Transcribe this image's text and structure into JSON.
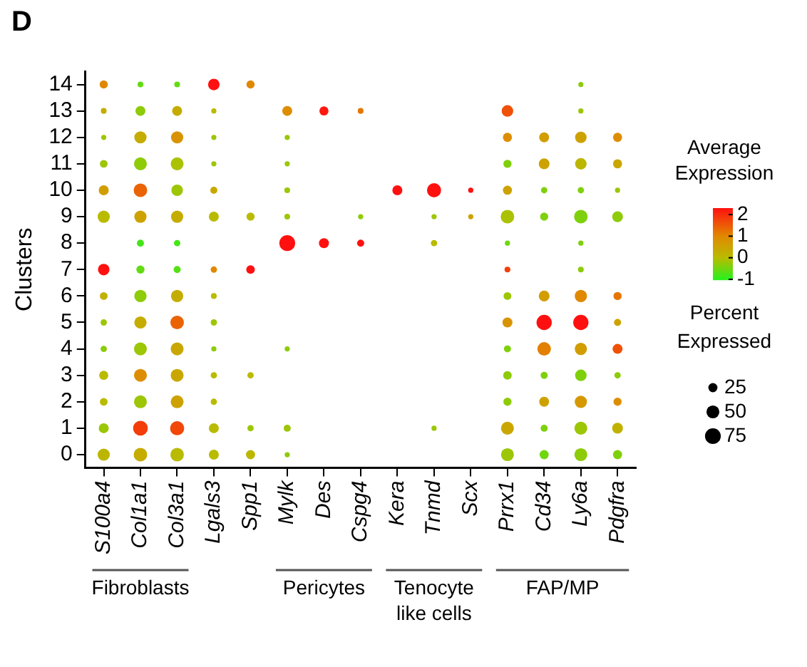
{
  "chart_data": {
    "type": "bubble",
    "title": "D",
    "ylabel": "Clusters",
    "categories": [
      "S100a4",
      "Col1a1",
      "Col3a1",
      "Lgals3",
      "Spp1",
      "Mylk",
      "Des",
      "Cspg4",
      "Kera",
      "Tnmd",
      "Scx",
      "Prrx1",
      "Cd34",
      "Ly6a",
      "Pdgfra"
    ],
    "ylim": [
      -0.5,
      14.5
    ],
    "yticks": [
      0,
      1,
      2,
      3,
      4,
      5,
      6,
      7,
      8,
      9,
      10,
      11,
      12,
      13,
      14
    ],
    "clabel": "Average Expression",
    "clim": [
      -1,
      2.3
    ],
    "cticks": [
      -1,
      0,
      1,
      2
    ],
    "size_legend": [
      25,
      50,
      75
    ],
    "annotations": [
      "Percent Expressed",
      "Fibroblasts",
      "Pericytes",
      "Tenocyte like cells",
      "FAP/MP"
    ],
    "grid": false,
    "series": [
      {
        "x": [
          "S100a4",
          "Col1a1",
          "Col3a1",
          "Lgals3",
          "Spp1",
          "Mylk",
          "Prrx1",
          "Cd34",
          "Ly6a",
          "Pdgfra"
        ],
        "values": [
          0,
          0,
          0,
          0,
          0,
          0,
          0,
          0,
          0,
          0
        ],
        "sizes": [
          45,
          55,
          55,
          30,
          25,
          8,
          50,
          25,
          50,
          25
        ],
        "colors": [
          "#bcb600",
          "#c5ac00",
          "#b9bb00",
          "#b9bb00",
          "#bcb600",
          "#8ecb09",
          "#9cc606",
          "#71d60f",
          "#8ecb09",
          "#7fd00c"
        ]
      },
      {
        "x": [
          "S100a4",
          "Col1a1",
          "Col3a1",
          "Lgals3",
          "Spp1",
          "Mylk",
          "Tnmd",
          "Prrx1",
          "Cd34",
          "Ly6a",
          "Pdgfra"
        ],
        "values": [
          1,
          1,
          1,
          1,
          1,
          1,
          1,
          1,
          1,
          1,
          1
        ],
        "sizes": [
          30,
          65,
          60,
          30,
          12,
          15,
          8,
          50,
          15,
          50,
          35
        ],
        "colors": [
          "#9cc606",
          "#f33e0a",
          "#f14709",
          "#b9bb00",
          "#9cc606",
          "#9cc606",
          "#9cc606",
          "#c9a700",
          "#7fd00c",
          "#9cc606",
          "#c0b100"
        ]
      },
      {
        "x": [
          "S100a4",
          "Col1a1",
          "Col3a1",
          "Lgals3",
          "Prrx1",
          "Cd34",
          "Ly6a",
          "Pdgfra"
        ],
        "values": [
          2,
          2,
          2,
          2,
          2,
          2,
          2,
          2
        ],
        "sizes": [
          18,
          50,
          50,
          12,
          20,
          30,
          45,
          20
        ],
        "colors": [
          "#b9bb00",
          "#9cc606",
          "#cda200",
          "#b9bb00",
          "#8ecb09",
          "#cda200",
          "#d59800",
          "#dd8e00"
        ]
      },
      {
        "x": [
          "S100a4",
          "Col1a1",
          "Col3a1",
          "Lgals3",
          "Spp1",
          "Prrx1",
          "Cd34",
          "Ly6a",
          "Pdgfra"
        ],
        "values": [
          3,
          3,
          3,
          3,
          3,
          3,
          3,
          3,
          3
        ],
        "sizes": [
          25,
          50,
          50,
          12,
          12,
          22,
          15,
          40,
          12
        ],
        "colors": [
          "#b9bb00",
          "#dd8e00",
          "#c9a700",
          "#b9bb00",
          "#b9bb00",
          "#8ecb09",
          "#7fd00c",
          "#7fd00c",
          "#8ecb09"
        ]
      },
      {
        "x": [
          "S100a4",
          "Col1a1",
          "Col3a1",
          "Lgals3",
          "Mylk",
          "Prrx1",
          "Cd34",
          "Ly6a",
          "Pdgfra"
        ],
        "values": [
          4,
          4,
          4,
          4,
          4,
          4,
          4,
          4,
          4
        ],
        "sizes": [
          12,
          50,
          50,
          8,
          8,
          15,
          55,
          45,
          30
        ],
        "colors": [
          "#8ecb09",
          "#9cc606",
          "#c9a700",
          "#8ecb09",
          "#8ecb09",
          "#7fd00c",
          "#e37f01",
          "#d19d00",
          "#ef5108"
        ]
      },
      {
        "x": [
          "S100a4",
          "Col1a1",
          "Col3a1",
          "Lgals3",
          "Prrx1",
          "Cd34",
          "Ly6a",
          "Pdgfra"
        ],
        "values": [
          5,
          5,
          5,
          5,
          5,
          5,
          5,
          5
        ],
        "sizes": [
          12,
          45,
          55,
          12,
          30,
          70,
          70,
          15
        ],
        "colors": [
          "#9cc606",
          "#c5ac00",
          "#ea6305",
          "#9cc606",
          "#d99300",
          "#ff1010",
          "#ff1010",
          "#cda200"
        ]
      },
      {
        "x": [
          "S100a4",
          "Col1a1",
          "Col3a1",
          "Lgals3",
          "Prrx1",
          "Cd34",
          "Ly6a",
          "Pdgfra"
        ],
        "values": [
          6,
          6,
          6,
          6,
          6,
          6,
          6,
          6
        ],
        "sizes": [
          18,
          45,
          45,
          10,
          18,
          35,
          45,
          20
        ],
        "colors": [
          "#c0b100",
          "#8ecb09",
          "#c5ac00",
          "#b9bb00",
          "#9cc606",
          "#d19d00",
          "#e08800",
          "#e57603"
        ]
      },
      {
        "x": [
          "S100a4",
          "Col1a1",
          "Col3a1",
          "Lgals3",
          "Spp1",
          "Prrx1",
          "Ly6a"
        ],
        "values": [
          7,
          7,
          7,
          7,
          7,
          7,
          7
        ],
        "sizes": [
          40,
          20,
          15,
          12,
          22,
          10,
          10
        ],
        "colors": [
          "#ff1010",
          "#62db12",
          "#54e015",
          "#e08800",
          "#ff1010",
          "#f33e0a",
          "#8ecb09"
        ]
      },
      {
        "x": [
          "Col1a1",
          "Col3a1",
          "Mylk",
          "Des",
          "Cspg4",
          "Tnmd",
          "Prrx1",
          "Ly6a"
        ],
        "values": [
          8,
          8,
          8,
          8,
          8,
          8,
          8,
          8
        ],
        "sizes": [
          15,
          12,
          75,
          30,
          15,
          12,
          8,
          8
        ],
        "colors": [
          "#45e518",
          "#45e518",
          "#ff1010",
          "#ff1010",
          "#ff1010",
          "#b9bb00",
          "#71d60f",
          "#7fd00c"
        ]
      },
      {
        "x": [
          "S100a4",
          "Col1a1",
          "Col3a1",
          "Lgals3",
          "Spp1",
          "Mylk",
          "Cspg4",
          "Tnmd",
          "Scx",
          "Prrx1",
          "Cd34",
          "Ly6a",
          "Pdgfra"
        ],
        "values": [
          9,
          9,
          9,
          9,
          9,
          9,
          9,
          9,
          9,
          9,
          9,
          9,
          9
        ],
        "sizes": [
          45,
          45,
          45,
          30,
          20,
          10,
          8,
          8,
          8,
          55,
          20,
          55,
          35
        ],
        "colors": [
          "#b9bb00",
          "#cda200",
          "#c5ac00",
          "#b9bb00",
          "#b9bb00",
          "#9cc606",
          "#8ecb09",
          "#9cc606",
          "#cda200",
          "#abc103",
          "#7fd00c",
          "#7fd00c",
          "#8ecb09"
        ]
      },
      {
        "x": [
          "S100a4",
          "Col1a1",
          "Col3a1",
          "Lgals3",
          "Mylk",
          "Kera",
          "Tnmd",
          "Scx",
          "Prrx1",
          "Cd34",
          "Ly6a",
          "Pdgfra"
        ],
        "values": [
          10,
          10,
          10,
          10,
          10,
          10,
          10,
          10,
          10,
          10,
          10,
          10
        ],
        "sizes": [
          30,
          55,
          40,
          15,
          10,
          30,
          60,
          8,
          25,
          12,
          12,
          8
        ],
        "colors": [
          "#d19d00",
          "#ea6305",
          "#9cc606",
          "#c9a700",
          "#9cc606",
          "#ff1010",
          "#ff1010",
          "#ff1010",
          "#cda200",
          "#7fd00c",
          "#7fd00c",
          "#9cc606"
        ]
      },
      {
        "x": [
          "S100a4",
          "Col1a1",
          "Col3a1",
          "Lgals3",
          "Mylk",
          "Prrx1",
          "Cd34",
          "Ly6a",
          "Pdgfra"
        ],
        "values": [
          11,
          11,
          11,
          11,
          11,
          11,
          11,
          11,
          11
        ],
        "sizes": [
          18,
          50,
          50,
          8,
          8,
          20,
          35,
          40,
          25
        ],
        "colors": [
          "#9cc606",
          "#8ecb09",
          "#abc103",
          "#9cc606",
          "#9cc606",
          "#7fd00c",
          "#cda200",
          "#bcb600",
          "#c9a700"
        ]
      },
      {
        "x": [
          "S100a4",
          "Col1a1",
          "Col3a1",
          "Lgals3",
          "Mylk",
          "Prrx1",
          "Cd34",
          "Ly6a",
          "Pdgfra"
        ],
        "values": [
          12,
          12,
          12,
          12,
          12,
          12,
          12,
          12,
          12
        ],
        "sizes": [
          8,
          45,
          45,
          8,
          8,
          25,
          30,
          40,
          25
        ],
        "colors": [
          "#9cc606",
          "#c5ac00",
          "#d99300",
          "#9cc606",
          "#9cc606",
          "#dd8e00",
          "#d19d00",
          "#cda200",
          "#dd8e00"
        ]
      },
      {
        "x": [
          "S100a4",
          "Col1a1",
          "Col3a1",
          "Lgals3",
          "Mylk",
          "Des",
          "Cspg4",
          "Prrx1",
          "Ly6a"
        ],
        "values": [
          13,
          13,
          13,
          13,
          13,
          13,
          13,
          13,
          13
        ],
        "sizes": [
          10,
          30,
          30,
          8,
          30,
          25,
          10,
          40,
          8
        ],
        "colors": [
          "#c5ac00",
          "#8ecb09",
          "#c5ac00",
          "#b9bb00",
          "#dd8e00",
          "#fd190f",
          "#e57603",
          "#ef5108",
          "#9cc606"
        ]
      },
      {
        "x": [
          "S100a4",
          "Col1a1",
          "Col3a1",
          "Lgals3",
          "Spp1",
          "Ly6a"
        ],
        "values": [
          14,
          14,
          14,
          14,
          14,
          14
        ],
        "sizes": [
          20,
          10,
          10,
          40,
          20,
          8
        ],
        "colors": [
          "#e08800",
          "#62db12",
          "#62db12",
          "#ff1010",
          "#e08800",
          "#8ecb09"
        ]
      }
    ]
  }
}
